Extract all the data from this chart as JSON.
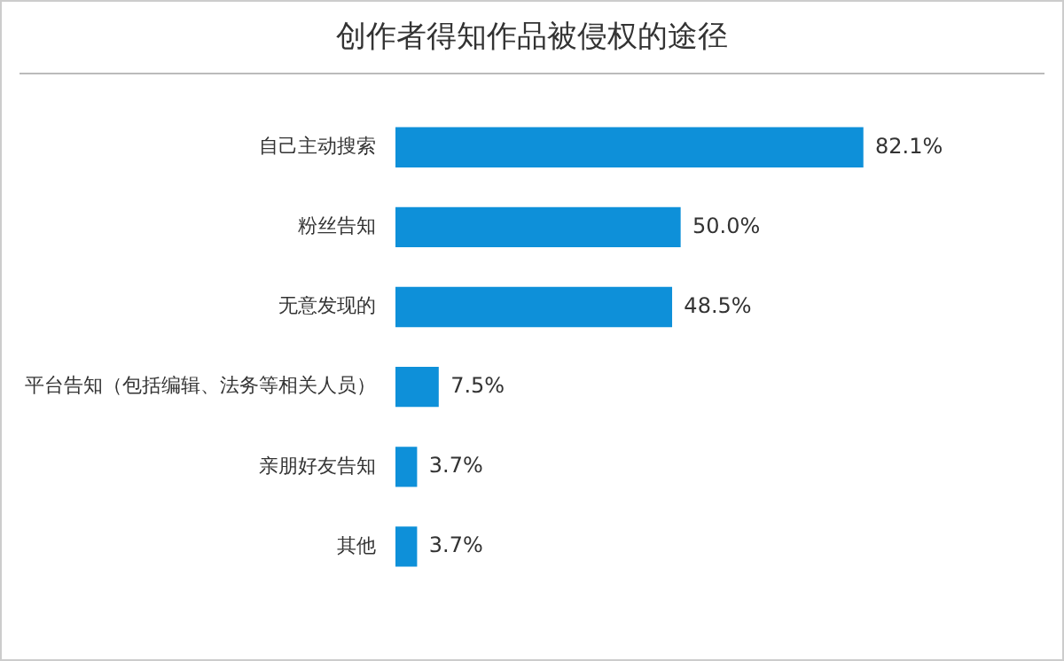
{
  "chart_data": {
    "type": "bar",
    "orientation": "horizontal",
    "title": "创作者得知作品被侵权的途径",
    "categories": [
      "自己主动搜索",
      "粉丝告知",
      "无意发现的",
      "平台告知（包括编辑、法务等相关人员）",
      "亲朋好友告知",
      "其他"
    ],
    "values": [
      82.1,
      50.0,
      48.5,
      7.5,
      3.7,
      3.7
    ],
    "value_labels": [
      "82.1%",
      "50.0%",
      "48.5%",
      "7.5%",
      "3.7%",
      "3.7%"
    ],
    "color": "#0e90d9"
  }
}
